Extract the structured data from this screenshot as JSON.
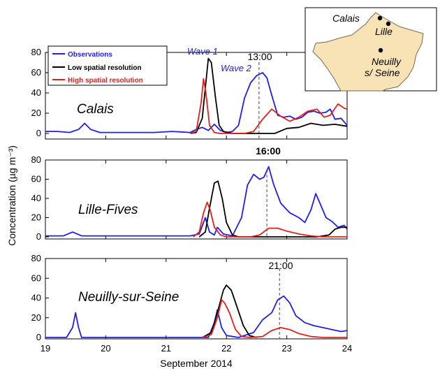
{
  "colors": {
    "observations": "#1f1fe6",
    "low_res": "#000000",
    "high_res": "#e0201c",
    "map_fill": "#f7e3b5",
    "map_stroke": "#7a6a4a"
  },
  "legend": {
    "observations": "Observations",
    "low_res": "Low spatial resolution",
    "high_res": "High spatial resolution"
  },
  "axis": {
    "xlabel": "September 2014",
    "ylabel": "Concentration (µg m⁻³)"
  },
  "annotations": {
    "wave1": "Wave 1",
    "wave2": "Wave 2"
  },
  "map": {
    "labels": [
      "Calais",
      "Lille",
      "Neuilly",
      "s/ Seine"
    ]
  },
  "chart_data": [
    {
      "type": "line",
      "title": "Calais",
      "marker_label": "13:00",
      "marker_x": 22.54,
      "xlim": [
        19,
        24
      ],
      "ylim": [
        0,
        80
      ],
      "xticks": [
        "19",
        "20",
        "21",
        "22",
        "23",
        "24"
      ],
      "yticks": [
        "0",
        "20",
        "40",
        "60",
        "80"
      ],
      "series": [
        {
          "name": "Observations",
          "color": "#1f1fe6",
          "points": [
            [
              19,
              2
            ],
            [
              19.2,
              2
            ],
            [
              19.4,
              1
            ],
            [
              19.55,
              4
            ],
            [
              19.65,
              10
            ],
            [
              19.75,
              4
            ],
            [
              19.9,
              1
            ],
            [
              20.2,
              1
            ],
            [
              20.5,
              1
            ],
            [
              20.8,
              1
            ],
            [
              21.1,
              2
            ],
            [
              21.4,
              1
            ],
            [
              21.5,
              4
            ],
            [
              21.6,
              6
            ],
            [
              21.7,
              3
            ],
            [
              21.8,
              9
            ],
            [
              21.9,
              3
            ],
            [
              22.0,
              1
            ],
            [
              22.1,
              2
            ],
            [
              22.2,
              8
            ],
            [
              22.3,
              35
            ],
            [
              22.4,
              50
            ],
            [
              22.5,
              57
            ],
            [
              22.6,
              60
            ],
            [
              22.67,
              55
            ],
            [
              22.75,
              38
            ],
            [
              22.85,
              18
            ],
            [
              22.95,
              16
            ],
            [
              23.05,
              17
            ],
            [
              23.15,
              14
            ],
            [
              23.25,
              16
            ],
            [
              23.35,
              21
            ],
            [
              23.45,
              22
            ],
            [
              23.55,
              20
            ],
            [
              23.65,
              21
            ],
            [
              23.72,
              24
            ],
            [
              23.8,
              14
            ],
            [
              23.9,
              15
            ],
            [
              24,
              8
            ]
          ]
        },
        {
          "name": "Low spatial resolution",
          "color": "#000000",
          "points": [
            [
              21.4,
              0
            ],
            [
              21.5,
              1
            ],
            [
              21.6,
              15
            ],
            [
              21.65,
              45
            ],
            [
              21.7,
              74
            ],
            [
              21.75,
              70
            ],
            [
              21.82,
              35
            ],
            [
              21.88,
              8
            ],
            [
              21.95,
              2
            ],
            [
              22.1,
              0
            ],
            [
              22.8,
              0
            ],
            [
              23.0,
              5
            ],
            [
              23.2,
              6
            ],
            [
              23.4,
              10
            ],
            [
              23.6,
              8
            ],
            [
              23.8,
              9
            ],
            [
              24,
              7
            ]
          ]
        },
        {
          "name": "High spatial resolution",
          "color": "#e0201c",
          "points": [
            [
              21.4,
              0
            ],
            [
              21.5,
              2
            ],
            [
              21.58,
              30
            ],
            [
              21.62,
              54
            ],
            [
              21.66,
              40
            ],
            [
              21.72,
              8
            ],
            [
              21.8,
              1
            ],
            [
              21.9,
              0
            ],
            [
              22.3,
              0
            ],
            [
              22.45,
              2
            ],
            [
              22.6,
              14
            ],
            [
              22.75,
              24
            ],
            [
              22.9,
              17
            ],
            [
              23.05,
              12
            ],
            [
              23.2,
              16
            ],
            [
              23.35,
              22
            ],
            [
              23.5,
              24
            ],
            [
              23.62,
              16
            ],
            [
              23.72,
              18
            ],
            [
              23.85,
              29
            ],
            [
              23.95,
              25
            ],
            [
              24,
              24
            ]
          ]
        }
      ]
    },
    {
      "type": "line",
      "title": "Lille-Fives",
      "marker_label": "16:00",
      "marker_x": 22.67,
      "xlim": [
        19,
        24
      ],
      "ylim": [
        0,
        80
      ],
      "xticks": [
        "19",
        "20",
        "21",
        "22",
        "23",
        "24"
      ],
      "yticks": [
        "0",
        "20",
        "40",
        "60",
        "80"
      ],
      "series": [
        {
          "name": "Observations",
          "color": "#1f1fe6",
          "points": [
            [
              19,
              1
            ],
            [
              19.3,
              1
            ],
            [
              19.45,
              5
            ],
            [
              19.6,
              1
            ],
            [
              19.9,
              1
            ],
            [
              20.2,
              1
            ],
            [
              20.5,
              1
            ],
            [
              20.8,
              1
            ],
            [
              21.1,
              1
            ],
            [
              21.4,
              1
            ],
            [
              21.55,
              3
            ],
            [
              21.65,
              20
            ],
            [
              21.72,
              5
            ],
            [
              21.8,
              2
            ],
            [
              21.85,
              10
            ],
            [
              21.95,
              3
            ],
            [
              22.1,
              1
            ],
            [
              22.25,
              20
            ],
            [
              22.35,
              54
            ],
            [
              22.45,
              65
            ],
            [
              22.55,
              60
            ],
            [
              22.62,
              62
            ],
            [
              22.7,
              73
            ],
            [
              22.78,
              55
            ],
            [
              22.9,
              35
            ],
            [
              23.05,
              25
            ],
            [
              23.2,
              20
            ],
            [
              23.3,
              15
            ],
            [
              23.4,
              28
            ],
            [
              23.48,
              45
            ],
            [
              23.55,
              35
            ],
            [
              23.65,
              20
            ],
            [
              23.75,
              16
            ],
            [
              23.85,
              10
            ],
            [
              23.95,
              12
            ],
            [
              24,
              8
            ]
          ]
        },
        {
          "name": "Low spatial resolution",
          "color": "#000000",
          "points": [
            [
              21.55,
              0
            ],
            [
              21.65,
              5
            ],
            [
              21.72,
              30
            ],
            [
              21.8,
              56
            ],
            [
              21.86,
              58
            ],
            [
              21.93,
              40
            ],
            [
              22.0,
              15
            ],
            [
              22.1,
              2
            ],
            [
              22.2,
              0
            ],
            [
              23.5,
              0
            ],
            [
              23.7,
              2
            ],
            [
              23.8,
              8
            ],
            [
              23.9,
              10
            ],
            [
              24,
              10
            ]
          ]
        },
        {
          "name": "High spatial resolution",
          "color": "#e0201c",
          "points": [
            [
              21.45,
              0
            ],
            [
              21.55,
              5
            ],
            [
              21.62,
              25
            ],
            [
              21.68,
              36
            ],
            [
              21.73,
              28
            ],
            [
              21.8,
              10
            ],
            [
              21.9,
              2
            ],
            [
              22.0,
              0
            ],
            [
              22.4,
              0
            ],
            [
              22.55,
              2
            ],
            [
              22.7,
              9
            ],
            [
              22.85,
              9
            ],
            [
              23.0,
              6
            ],
            [
              23.2,
              3
            ],
            [
              23.4,
              1
            ],
            [
              23.6,
              0
            ],
            [
              24,
              0
            ]
          ]
        }
      ]
    },
    {
      "type": "line",
      "title": "Neuilly-sur-Seine",
      "marker_label": "21:00",
      "marker_x": 22.88,
      "xlim": [
        19,
        24
      ],
      "ylim": [
        0,
        80
      ],
      "xticks": [
        "19",
        "20",
        "21",
        "22",
        "23",
        "24"
      ],
      "yticks": [
        "0",
        "20",
        "40",
        "60",
        "80"
      ],
      "series": [
        {
          "name": "Observations",
          "color": "#1f1fe6",
          "points": [
            [
              19,
              0
            ],
            [
              19.35,
              0
            ],
            [
              19.45,
              10
            ],
            [
              19.5,
              25
            ],
            [
              19.55,
              10
            ],
            [
              19.6,
              0
            ],
            [
              21.0,
              0
            ],
            [
              21.7,
              0
            ],
            [
              21.8,
              15
            ],
            [
              21.85,
              28
            ],
            [
              21.92,
              10
            ],
            [
              22.0,
              2
            ],
            [
              22.2,
              0
            ],
            [
              22.45,
              5
            ],
            [
              22.6,
              18
            ],
            [
              22.75,
              25
            ],
            [
              22.85,
              38
            ],
            [
              22.95,
              42
            ],
            [
              23.05,
              35
            ],
            [
              23.15,
              22
            ],
            [
              23.3,
              15
            ],
            [
              23.45,
              12
            ],
            [
              23.6,
              10
            ],
            [
              23.75,
              8
            ],
            [
              23.9,
              6
            ],
            [
              24,
              7
            ]
          ]
        },
        {
          "name": "Low spatial resolution",
          "color": "#000000",
          "points": [
            [
              21.6,
              0
            ],
            [
              21.75,
              5
            ],
            [
              21.85,
              25
            ],
            [
              21.95,
              48
            ],
            [
              22.0,
              53
            ],
            [
              22.08,
              48
            ],
            [
              22.18,
              30
            ],
            [
              22.28,
              12
            ],
            [
              22.38,
              2
            ],
            [
              22.5,
              0
            ]
          ]
        },
        {
          "name": "High spatial resolution",
          "color": "#e0201c",
          "points": [
            [
              21.6,
              0
            ],
            [
              21.75,
              3
            ],
            [
              21.85,
              20
            ],
            [
              21.92,
              38
            ],
            [
              21.97,
              35
            ],
            [
              22.05,
              25
            ],
            [
              22.15,
              8
            ],
            [
              22.25,
              1
            ],
            [
              22.4,
              0
            ],
            [
              22.6,
              1
            ],
            [
              22.75,
              7
            ],
            [
              22.9,
              10
            ],
            [
              23.05,
              8
            ],
            [
              23.2,
              4
            ],
            [
              23.4,
              1
            ],
            [
              23.6,
              0
            ],
            [
              24,
              0
            ]
          ]
        }
      ]
    }
  ]
}
